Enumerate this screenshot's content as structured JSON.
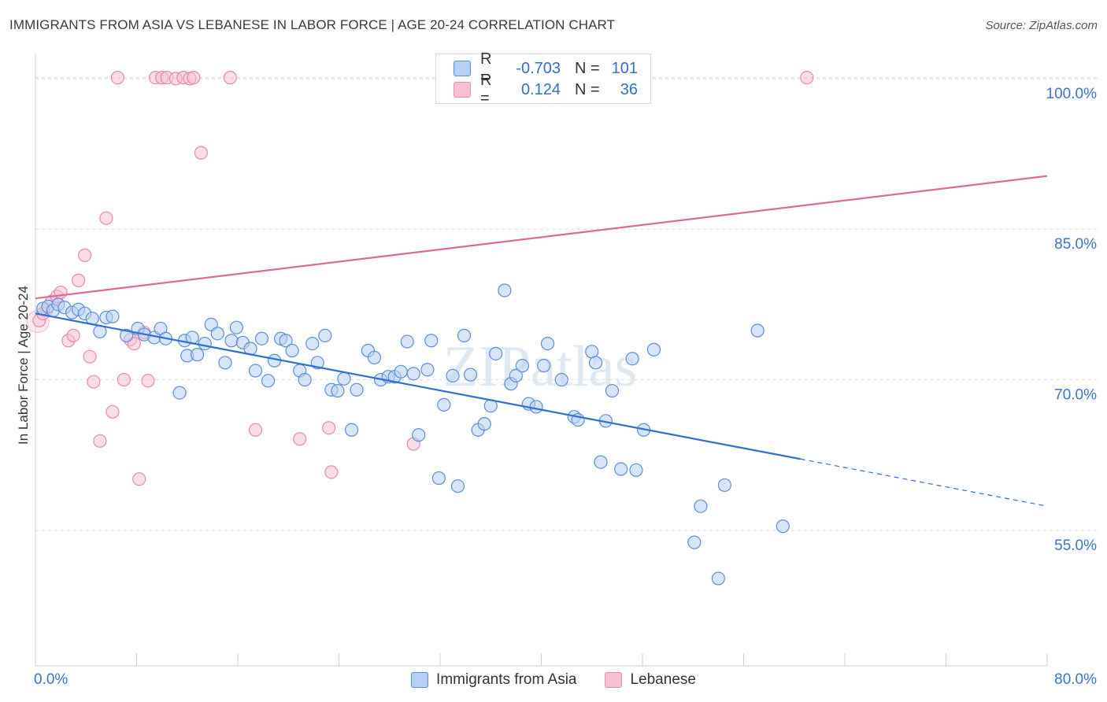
{
  "title": "IMMIGRANTS FROM ASIA VS LEBANESE IN LABOR FORCE | AGE 20-24 CORRELATION CHART",
  "source": "Source: ZipAtlas.com",
  "watermark": "ZIPatlas",
  "legend": {
    "rows": [
      {
        "r_label": "R =",
        "r_value": "-0.703",
        "n_label": "N =",
        "n_value": "101"
      },
      {
        "r_label": "R =",
        "r_value": "0.124",
        "n_label": "N =",
        "n_value": "36"
      }
    ]
  },
  "chart_data": {
    "type": "scatter",
    "title": "IMMIGRANTS FROM ASIA VS LEBANESE IN LABOR FORCE | AGE 20-24 CORRELATION CHART",
    "xlabel": "",
    "ylabel": "In Labor Force | Age 20-24",
    "xlim": [
      0,
      80
    ],
    "ylim": [
      41.5,
      102.5
    ],
    "x_tick_labels": [
      "0.0%",
      "80.0%"
    ],
    "y_ticks": [
      55,
      70,
      85,
      100
    ],
    "y_tick_labels": [
      "55.0%",
      "70.0%",
      "85.0%",
      "100.0%"
    ],
    "grid": "horizontal dashed",
    "legend_placement": "bottom-center",
    "colors": {
      "asia_fill": "#b8d0f4",
      "asia_stroke": "#5b8ed6",
      "asia_line": "#2e6fd0",
      "leb_fill": "#f6c2d3",
      "leb_stroke": "#e88aa8",
      "leb_line": "#e06a96",
      "tick_text": "#3d74c9"
    },
    "series": [
      {
        "name": "Immigrants from Asia",
        "r": -0.703,
        "n": 101,
        "trend": {
          "x0": 0,
          "y0": 76.6,
          "x1": 60.5,
          "y1": 62.1,
          "dash_x1": 80,
          "dash_y1": 57.4
        },
        "points": [
          [
            0.6,
            77.1
          ],
          [
            1.0,
            77.3
          ],
          [
            1.4,
            76.9
          ],
          [
            1.8,
            77.5
          ],
          [
            2.3,
            77.2
          ],
          [
            2.9,
            76.7
          ],
          [
            3.4,
            77.0
          ],
          [
            3.9,
            76.6
          ],
          [
            4.5,
            76.1
          ],
          [
            5.1,
            74.8
          ],
          [
            5.6,
            76.2
          ],
          [
            6.1,
            76.3
          ],
          [
            7.2,
            74.4
          ],
          [
            8.1,
            75.1
          ],
          [
            8.6,
            74.5
          ],
          [
            9.4,
            74.2
          ],
          [
            9.9,
            75.1
          ],
          [
            10.3,
            74.1
          ],
          [
            11.4,
            68.7
          ],
          [
            11.8,
            73.9
          ],
          [
            12.0,
            72.4
          ],
          [
            12.4,
            74.2
          ],
          [
            12.8,
            72.5
          ],
          [
            13.4,
            73.6
          ],
          [
            13.9,
            75.5
          ],
          [
            14.4,
            74.6
          ],
          [
            15.0,
            71.7
          ],
          [
            15.5,
            73.9
          ],
          [
            15.9,
            75.2
          ],
          [
            16.4,
            73.7
          ],
          [
            17.0,
            73.1
          ],
          [
            17.4,
            70.9
          ],
          [
            17.9,
            74.1
          ],
          [
            18.4,
            69.9
          ],
          [
            18.9,
            71.9
          ],
          [
            19.4,
            74.1
          ],
          [
            19.8,
            73.9
          ],
          [
            20.3,
            72.9
          ],
          [
            20.9,
            70.9
          ],
          [
            21.3,
            70.0
          ],
          [
            21.9,
            73.6
          ],
          [
            22.3,
            71.7
          ],
          [
            22.9,
            74.4
          ],
          [
            23.4,
            69.0
          ],
          [
            23.9,
            68.9
          ],
          [
            24.4,
            70.1
          ],
          [
            25.4,
            69.0
          ],
          [
            25.0,
            65.0
          ],
          [
            26.3,
            72.9
          ],
          [
            26.8,
            72.2
          ],
          [
            27.3,
            70.0
          ],
          [
            27.9,
            70.3
          ],
          [
            28.4,
            70.3
          ],
          [
            28.9,
            70.8
          ],
          [
            29.4,
            73.8
          ],
          [
            29.9,
            70.6
          ],
          [
            30.3,
            64.5
          ],
          [
            31.0,
            71.0
          ],
          [
            31.3,
            73.9
          ],
          [
            31.9,
            60.2
          ],
          [
            32.3,
            67.5
          ],
          [
            33.0,
            70.4
          ],
          [
            33.4,
            59.4
          ],
          [
            33.9,
            74.4
          ],
          [
            34.4,
            70.5
          ],
          [
            35.0,
            65.0
          ],
          [
            35.5,
            65.6
          ],
          [
            36.0,
            67.4
          ],
          [
            36.4,
            72.6
          ],
          [
            37.1,
            78.9
          ],
          [
            37.6,
            69.6
          ],
          [
            38.0,
            70.4
          ],
          [
            38.5,
            71.4
          ],
          [
            39.0,
            67.6
          ],
          [
            39.6,
            67.3
          ],
          [
            40.2,
            71.4
          ],
          [
            40.5,
            73.6
          ],
          [
            41.6,
            70.0
          ],
          [
            42.6,
            66.3
          ],
          [
            42.9,
            66.0
          ],
          [
            44.0,
            72.8
          ],
          [
            44.3,
            71.7
          ],
          [
            44.7,
            61.8
          ],
          [
            45.1,
            65.9
          ],
          [
            45.6,
            68.9
          ],
          [
            46.3,
            61.1
          ],
          [
            47.2,
            72.1
          ],
          [
            47.5,
            61.0
          ],
          [
            48.1,
            65.0
          ],
          [
            48.9,
            73.0
          ],
          [
            52.1,
            53.8
          ],
          [
            52.6,
            57.4
          ],
          [
            54.0,
            50.2
          ],
          [
            54.5,
            59.5
          ],
          [
            57.1,
            74.9
          ],
          [
            59.1,
            55.4
          ]
        ]
      },
      {
        "name": "Lebanese",
        "r": 0.124,
        "n": 36,
        "trend": {
          "x0": 0,
          "y0": 78.1,
          "x1": 80,
          "y1": 90.3
        },
        "points": [
          [
            0.3,
            75.9
          ],
          [
            0.6,
            76.6
          ],
          [
            0.9,
            77.0
          ],
          [
            1.3,
            77.8
          ],
          [
            1.7,
            78.3
          ],
          [
            2.0,
            78.7
          ],
          [
            2.6,
            73.9
          ],
          [
            3.0,
            74.4
          ],
          [
            3.4,
            79.9
          ],
          [
            3.9,
            82.4
          ],
          [
            4.3,
            72.3
          ],
          [
            4.6,
            69.8
          ],
          [
            5.1,
            63.9
          ],
          [
            5.6,
            86.1
          ],
          [
            6.1,
            66.8
          ],
          [
            6.5,
            100.1
          ],
          [
            7.0,
            70.0
          ],
          [
            7.5,
            74.0
          ],
          [
            7.8,
            73.6
          ],
          [
            8.2,
            60.1
          ],
          [
            8.6,
            74.7
          ],
          [
            8.9,
            69.9
          ],
          [
            9.5,
            100.1
          ],
          [
            10.0,
            100.1
          ],
          [
            10.4,
            100.1
          ],
          [
            11.1,
            100.0
          ],
          [
            11.7,
            100.1
          ],
          [
            12.2,
            100.0
          ],
          [
            12.5,
            100.1
          ],
          [
            13.1,
            92.6
          ],
          [
            15.4,
            100.1
          ],
          [
            17.4,
            65.0
          ],
          [
            20.9,
            64.1
          ],
          [
            23.2,
            65.2
          ],
          [
            23.4,
            60.8
          ],
          [
            29.9,
            63.6
          ],
          [
            61.0,
            100.1
          ]
        ]
      }
    ]
  },
  "axes": {
    "ylabel": "In Labor Force | Age 20-24",
    "x_min_label": "0.0%",
    "x_max_label": "80.0%"
  },
  "bottom_legend": {
    "items": [
      {
        "label": "Immigrants from Asia"
      },
      {
        "label": "Lebanese"
      }
    ]
  }
}
